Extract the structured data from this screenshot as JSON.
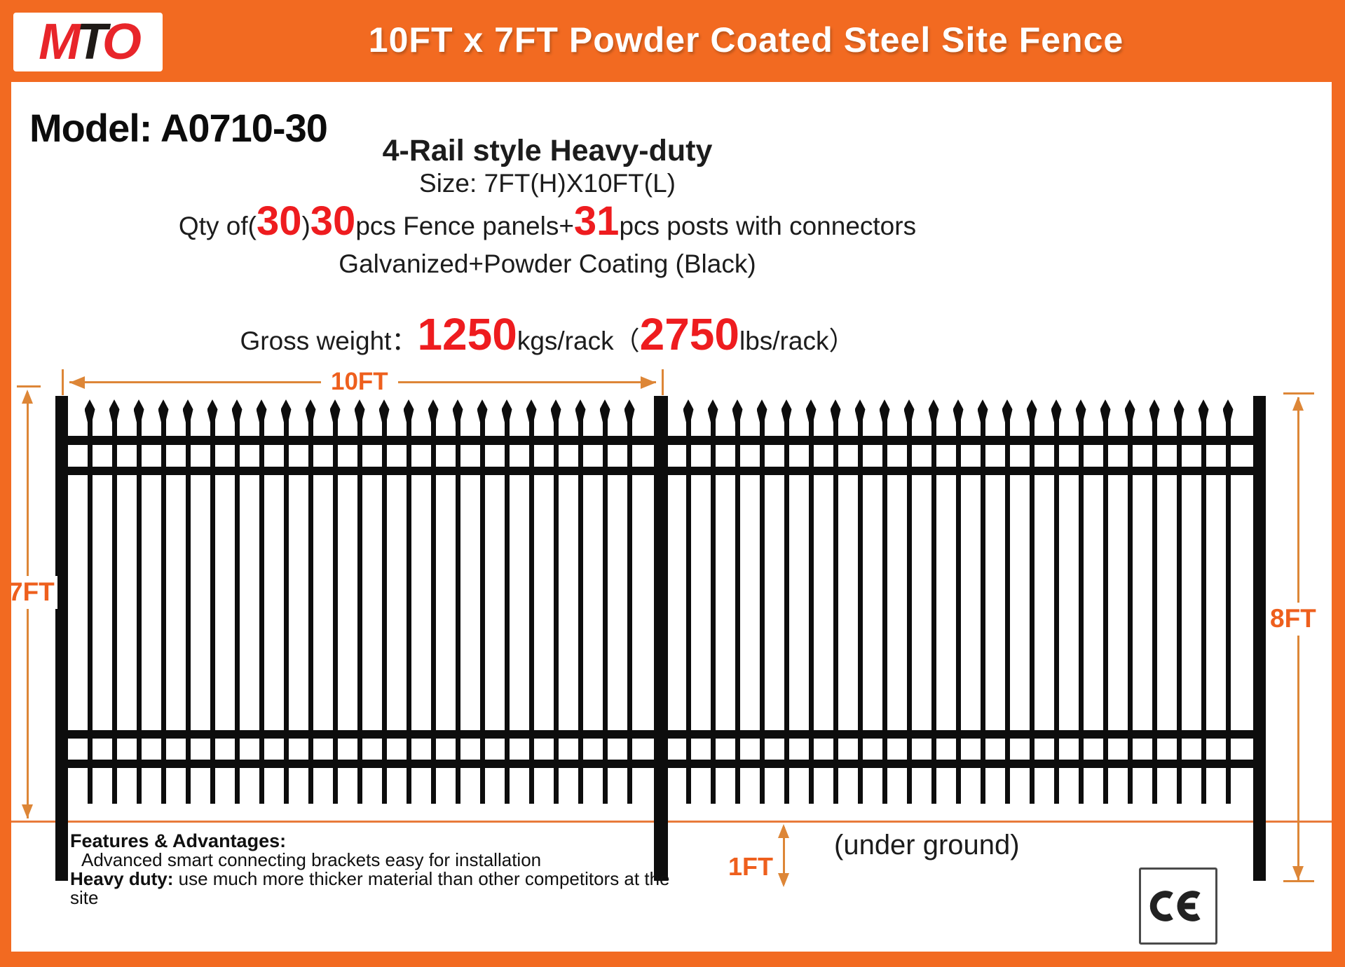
{
  "header": {
    "logo": {
      "m": "M",
      "t": "T",
      "o": "O"
    },
    "title": "10FT x 7FT Powder Coated Steel Site Fence"
  },
  "specs": {
    "model": "Model: A0710-30",
    "style": "4-Rail style Heavy-duty",
    "size": "Size: 7FT(H)X10FT(L)",
    "qty_prefix": "Qty of(",
    "qty_num1": "30",
    "qty_close_paren": ")",
    "qty_num2": "30",
    "qty_mid": "pcs Fence panels+",
    "qty_num3": "31",
    "qty_suffix": "pcs posts with connectors",
    "coating": "Galvanized+Powder Coating (Black)",
    "weight_label": "Gross weight：",
    "weight_kg": "1250",
    "weight_kg_unit": "kgs/rack",
    "weight_open_paren": "（",
    "weight_lb": "2750",
    "weight_lb_unit": "lbs/rack）"
  },
  "diagram": {
    "dim_width_label": "10FT",
    "dim_height_left_label": "7FT",
    "dim_height_right_label": "8FT",
    "dim_underground_label": "1FT",
    "underground_note": "(under ground)",
    "panels": 2,
    "pickets_per_panel": 23,
    "rails": 4,
    "posts": 3
  },
  "features": {
    "heading": "Features & Advantages:",
    "line1": "Advanced smart connecting brackets easy for installation",
    "line2_bold": "Heavy duty:",
    "line2_rest": " use much more thicker material than other competitors at the site"
  },
  "certification": {
    "label": "CE"
  },
  "colors": {
    "orange": "#f26a21",
    "dimension_line": "#dd8637",
    "dimension_label": "#ee5f1d",
    "highlight_red": "#ee1c1f",
    "fence_black": "#0d0d0d"
  }
}
